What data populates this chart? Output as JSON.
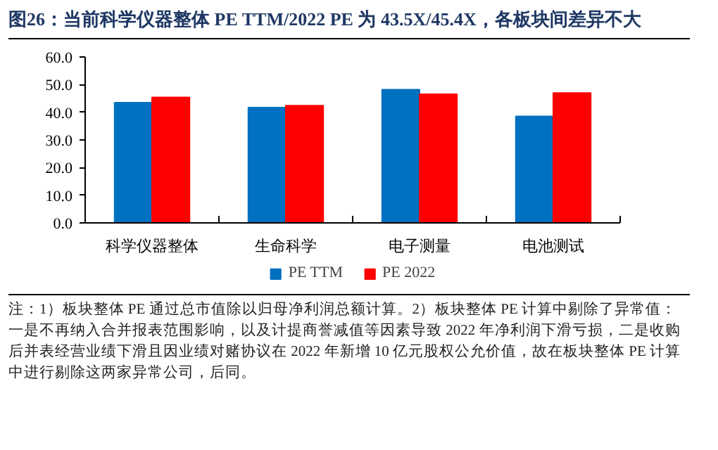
{
  "chart_data": {
    "type": "bar",
    "title": "图26：当前科学仪器整体 PE TTM/2022 PE 为 43.5X/45.4X，各板块间差异不大",
    "categories": [
      "科学仪器整体",
      "生命科学",
      "电子测量",
      "电池测试"
    ],
    "series": [
      {
        "name": "PE TTM",
        "color": "#0070c0",
        "values": [
          43.5,
          41.7,
          48.2,
          38.5
        ]
      },
      {
        "name": "PE 2022",
        "color": "#ff0000",
        "values": [
          45.4,
          42.4,
          46.5,
          47.0
        ]
      }
    ],
    "ylim": [
      0,
      60
    ],
    "yticks": [
      {
        "value": 0,
        "label": "0.0"
      },
      {
        "value": 10,
        "label": "10.0"
      },
      {
        "value": 20,
        "label": "20.0"
      },
      {
        "value": 30,
        "label": "30.0"
      },
      {
        "value": 40,
        "label": "40.0"
      },
      {
        "value": 50,
        "label": "50.0"
      },
      {
        "value": 60,
        "label": "60.0"
      }
    ],
    "grid": false,
    "legend": "bottom",
    "annotations": [
      "注：1）板块整体 PE 通过总市值除以归母净利润总额计算。2）板块整体 PE 计算中剔除了异常值：一是不再纳入合并报表范围影响，以及计提商誉减值等因素导致 2022 年净利润下滑亏损，二是收购后并表经营业绩下滑且因业绩对赌协议在 2022 年新增 10 亿元股权公允价值，故在板块整体 PE 计算中进行剔除这两家异常公司，后同。"
    ]
  }
}
